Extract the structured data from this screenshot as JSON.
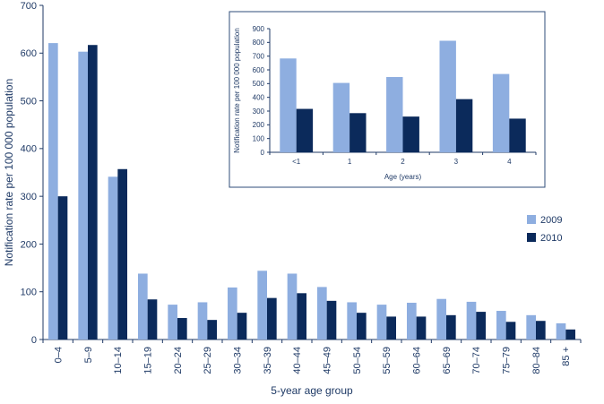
{
  "colors": {
    "s2009": "#8eaee0",
    "s2010": "#0b2a5b",
    "axis": "#1f3a66",
    "inset_border": "#2f4d7a"
  },
  "chart_data": [
    {
      "id": "main",
      "type": "bar",
      "xlabel": "5-year age group",
      "ylabel": "Notification rate per 100 000 population",
      "ylim": [
        0,
        700
      ],
      "yticks": [
        0,
        100,
        200,
        300,
        400,
        500,
        600,
        700
      ],
      "categories": [
        "0–4",
        "5–9",
        "10–14",
        "15–19",
        "20–24",
        "25–29",
        "30–34",
        "35–39",
        "40–44",
        "45–49",
        "50–54",
        "55–59",
        "60–64",
        "65–69",
        "70–74",
        "75–79",
        "80–84",
        "85 +"
      ],
      "series": [
        {
          "name": "2009",
          "values": [
            621,
            603,
            341,
            138,
            73,
            78,
            109,
            144,
            138,
            110,
            78,
            73,
            77,
            85,
            79,
            60,
            51,
            34
          ]
        },
        {
          "name": "2010",
          "values": [
            300,
            617,
            357,
            84,
            45,
            41,
            56,
            87,
            97,
            81,
            56,
            48,
            48,
            51,
            58,
            37,
            39,
            21
          ]
        }
      ],
      "legend": "right",
      "grid": false
    },
    {
      "id": "inset",
      "type": "bar",
      "xlabel": "Age (years)",
      "ylabel": "Notification rate per 100 000 population",
      "ylim": [
        0,
        900
      ],
      "yticks": [
        0,
        100,
        200,
        300,
        400,
        500,
        600,
        700,
        800,
        900
      ],
      "categories": [
        "<1",
        "1",
        "2",
        "3",
        "4"
      ],
      "series": [
        {
          "name": "2009",
          "values": [
            683,
            505,
            548,
            812,
            570
          ]
        },
        {
          "name": "2010",
          "values": [
            316,
            285,
            260,
            387,
            245
          ]
        }
      ],
      "grid": false
    }
  ]
}
